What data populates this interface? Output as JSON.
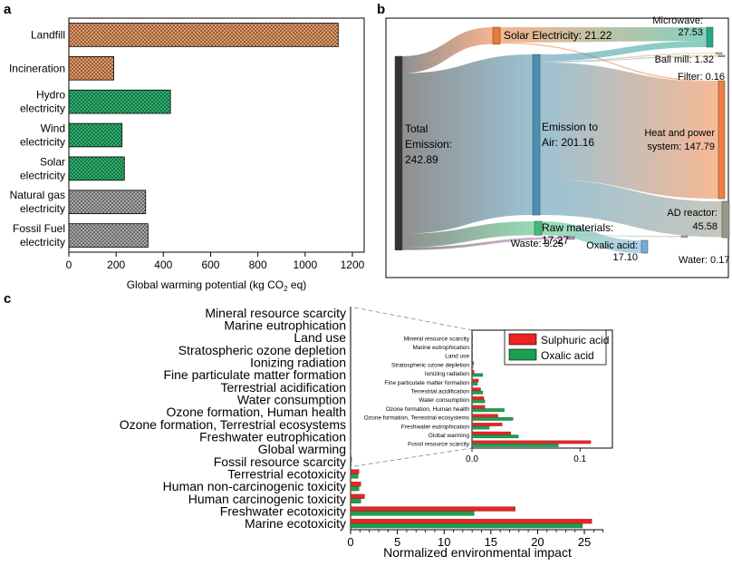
{
  "chart_data": [
    {
      "panel": "a",
      "type": "bar",
      "orientation": "horizontal",
      "categories": [
        [
          "Landfill"
        ],
        [
          "Incineration"
        ],
        [
          "Hydro",
          "electricity"
        ],
        [
          "Wind",
          "electricity"
        ],
        [
          "Solar",
          "electricity"
        ],
        [
          "Natural gas",
          "electricity"
        ],
        [
          "Fossil Fuel",
          "electricity"
        ]
      ],
      "values": [
        1140,
        190,
        430,
        225,
        235,
        325,
        335
      ],
      "colors": [
        "#f4a46c",
        "#f4a46c",
        "#2fbf76",
        "#2fbf76",
        "#2fbf76",
        "#b3b3b3",
        "#b3b3b3"
      ],
      "xlabel": "Global warming potential (kg CO",
      "xlabel_sub": "2",
      "xlabel_tail": " eq)",
      "xlim": [
        0,
        1250
      ],
      "xticks": [
        0,
        200,
        400,
        600,
        800,
        1000,
        1200
      ]
    },
    {
      "panel": "b",
      "type": "sankey",
      "nodes": [
        {
          "id": "total",
          "label": [
            "Total",
            "Emission:",
            "242.89"
          ],
          "value": 242.89,
          "color": "#333333"
        },
        {
          "id": "solar",
          "label": [
            "Solar Electricity: 21.22"
          ],
          "value": 21.22,
          "color": "#ee7733"
        },
        {
          "id": "air",
          "label": [
            "Emission to",
            "Air: 201.16"
          ],
          "value": 201.16,
          "color": "#4a8fb0"
        },
        {
          "id": "raw",
          "label": [
            "Raw materials:",
            "17.27"
          ],
          "value": 17.27,
          "color": "#44bb77"
        },
        {
          "id": "waste",
          "label": [
            "Waste: 3.25"
          ],
          "value": 3.25,
          "color": "#cc88cc"
        },
        {
          "id": "micro",
          "label": [
            "Microwave:",
            "27.53"
          ],
          "value": 27.53,
          "color": "#22aa88"
        },
        {
          "id": "ball",
          "label": [
            "Ball mill: 1.32"
          ],
          "value": 1.32,
          "color": "#ffcc88"
        },
        {
          "id": "filter",
          "label": [
            "Filter: 0.16"
          ],
          "value": 0.16,
          "color": "#ccaa77"
        },
        {
          "id": "heat",
          "label": [
            "Heat and power",
            "system: 147.79"
          ],
          "value": 147.79,
          "color": "#f08040"
        },
        {
          "id": "ad",
          "label": [
            "AD reactor:",
            "45.58"
          ],
          "value": 45.58,
          "color": "#999988"
        },
        {
          "id": "oxalic",
          "label": [
            "Oxalic acid:",
            "17.10"
          ],
          "value": 17.1,
          "color": "#77aadd"
        },
        {
          "id": "water",
          "label": [
            "Water: 0.17"
          ],
          "value": 0.17,
          "color": "#bbbbbb"
        }
      ],
      "links": [
        {
          "source": "total",
          "target": "solar",
          "value": 21.22
        },
        {
          "source": "total",
          "target": "air",
          "value": 201.16
        },
        {
          "source": "total",
          "target": "raw",
          "value": 17.27
        },
        {
          "source": "total",
          "target": "waste",
          "value": 3.25
        },
        {
          "source": "solar",
          "target": "micro",
          "value": 19.0
        },
        {
          "source": "solar",
          "target": "heat",
          "value": 1.5
        },
        {
          "source": "air",
          "target": "micro",
          "value": 8.5
        },
        {
          "source": "air",
          "target": "ball",
          "value": 1.32
        },
        {
          "source": "air",
          "target": "filter",
          "value": 0.16
        },
        {
          "source": "air",
          "target": "heat",
          "value": 146.29
        },
        {
          "source": "air",
          "target": "ad",
          "value": 44.9
        },
        {
          "source": "raw",
          "target": "oxalic",
          "value": 17.1
        },
        {
          "source": "raw",
          "target": "water",
          "value": 0.17
        }
      ]
    },
    {
      "panel": "c",
      "type": "bar",
      "orientation": "horizontal",
      "categories": [
        "Mineral resource scarcity",
        "Marine eutrophication",
        "Land use",
        "Stratospheric ozone depletion",
        "Ionizing radiation",
        "Fine particulate matter formation",
        "Terrestrial acidification",
        "Water consumption",
        "Ozone formation, Human health",
        "Ozone formation, Terrestrial ecosystems",
        "Freshwater eutrophication",
        "Global warming",
        "Fossil resource scarcity",
        "Terrestrial ecotoxicity",
        "Human non-carcinogenic toxicity",
        "Human carcinogenic toxicity",
        "Freshwater ecotoxicity",
        "Marine ecotoxicity"
      ],
      "series": [
        {
          "name": "Sulphuric acid",
          "color": "#ee2222",
          "values": [
            0.0005,
            0.0005,
            0.0005,
            0.0015,
            0.002,
            0.006,
            0.008,
            0.011,
            0.012,
            0.024,
            0.028,
            0.036,
            0.11,
            0.9,
            1.1,
            1.5,
            17.6,
            25.8
          ]
        },
        {
          "name": "Oxalic acid",
          "color": "#1aa050",
          "values": [
            0.0005,
            0.0005,
            0.0005,
            0.001,
            0.01,
            0.005,
            0.01,
            0.012,
            0.03,
            0.038,
            0.016,
            0.043,
            0.08,
            0.8,
            0.9,
            1.1,
            13.2,
            24.8
          ]
        }
      ],
      "xlabel": "Normalized environmental impact",
      "xlim": [
        0,
        28
      ],
      "xticks": [
        0,
        5,
        10,
        15,
        20,
        25
      ],
      "inset": {
        "categories_count": 13,
        "xlim": [
          0,
          0.13
        ],
        "xticks": [
          0.0,
          0.1
        ],
        "xtick_labels": [
          "0.0",
          "0.1"
        ]
      },
      "legend": "inset top-right"
    }
  ],
  "panel_labels": [
    "a",
    "b",
    "c"
  ]
}
